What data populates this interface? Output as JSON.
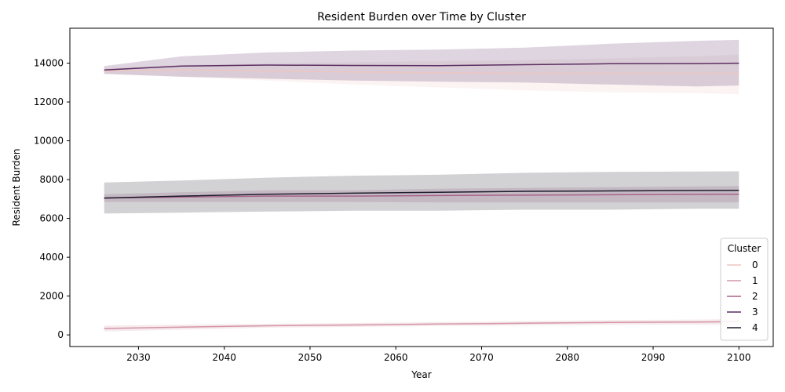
{
  "chart_data": {
    "type": "line",
    "title": "Resident Burden over Time by Cluster",
    "xlabel": "Year",
    "ylabel": "Resident Burden",
    "xlim": [
      2022,
      2104
    ],
    "ylim": [
      -600,
      15800
    ],
    "x_ticks": [
      2030,
      2040,
      2050,
      2060,
      2070,
      2080,
      2090,
      2100
    ],
    "y_ticks": [
      0,
      2000,
      4000,
      6000,
      8000,
      10000,
      12000,
      14000
    ],
    "grid": false,
    "legend": {
      "title": "Cluster",
      "placement": "lower-right"
    },
    "x": [
      2026,
      2035,
      2045,
      2055,
      2065,
      2075,
      2085,
      2095,
      2100
    ],
    "series": [
      {
        "name": "0",
        "color": "#ebc6c3",
        "values": [
          13600,
          13650,
          13600,
          13550,
          13500,
          13480,
          13480,
          13480,
          13480
        ],
        "lower": [
          13450,
          13300,
          13100,
          12900,
          12750,
          12600,
          12500,
          12450,
          12400
        ],
        "upper": [
          13750,
          13900,
          14000,
          14050,
          14100,
          14150,
          14250,
          14350,
          14450
        ]
      },
      {
        "name": "1",
        "color": "#d495a7",
        "values": [
          330,
          400,
          470,
          510,
          560,
          600,
          640,
          660,
          680
        ],
        "lower": [
          180,
          270,
          370,
          410,
          460,
          490,
          520,
          530,
          540
        ],
        "upper": [
          480,
          530,
          570,
          610,
          660,
          710,
          760,
          790,
          820
        ]
      },
      {
        "name": "2",
        "color": "#a8638b",
        "values": [
          7050,
          7100,
          7150,
          7150,
          7180,
          7200,
          7220,
          7240,
          7250
        ],
        "lower": [
          6850,
          6850,
          6850,
          6850,
          6830,
          6830,
          6830,
          6830,
          6830
        ],
        "upper": [
          7250,
          7350,
          7450,
          7450,
          7530,
          7570,
          7610,
          7650,
          7670
        ]
      },
      {
        "name": "3",
        "color": "#5c2f63",
        "values": [
          13650,
          13850,
          13900,
          13880,
          13870,
          13920,
          13970,
          13980,
          14000
        ],
        "lower": [
          13450,
          13300,
          13200,
          13100,
          13050,
          13000,
          12900,
          12800,
          12850
        ],
        "upper": [
          13850,
          14350,
          14550,
          14650,
          14700,
          14800,
          15000,
          15150,
          15200
        ]
      },
      {
        "name": "4",
        "color": "#1e1c2e",
        "values": [
          7050,
          7150,
          7250,
          7300,
          7350,
          7400,
          7420,
          7440,
          7450
        ],
        "lower": [
          6250,
          6300,
          6350,
          6400,
          6400,
          6450,
          6450,
          6500,
          6500
        ],
        "upper": [
          7850,
          7950,
          8100,
          8200,
          8250,
          8350,
          8400,
          8420,
          8430
        ]
      }
    ]
  }
}
